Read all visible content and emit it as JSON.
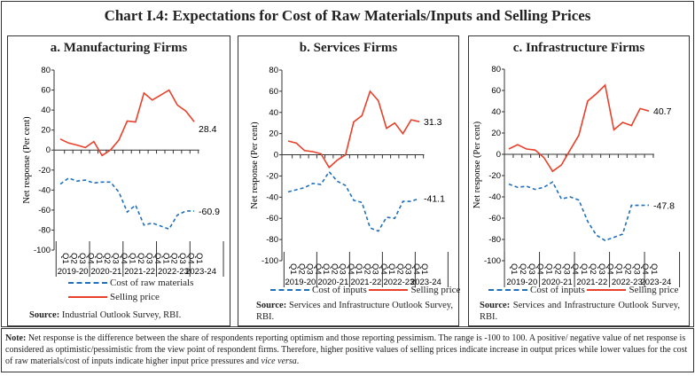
{
  "title": "Chart I.4: Expectations for Cost of Raw Materials/Inputs and Selling Prices",
  "colors": {
    "cost": "#1f6fbf",
    "selling": "#e8402a"
  },
  "chart_data": [
    {
      "type": "line",
      "title": "a. Manufacturing Firms",
      "ylabel": "Net response (Per cent)",
      "ylim": [
        -100,
        80
      ],
      "yticks": [
        "80",
        "60",
        "40",
        "20",
        "0",
        "-20",
        "-40",
        "-60",
        "-80",
        "-100"
      ],
      "quarters": [
        "Q1",
        "Q2",
        "Q3",
        "Q4",
        "Q1",
        "Q2",
        "Q3",
        "Q4",
        "Q1",
        "Q2",
        "Q3",
        "Q4",
        "Q1",
        "Q2",
        "Q3",
        "Q4",
        "Q1"
      ],
      "years": [
        "2019-20",
        "2020-21",
        "2021-22",
        "2022-23",
        "2023-24"
      ],
      "series": [
        {
          "name": "Cost of raw materials",
          "style": "dashed",
          "values": [
            -34,
            -28,
            -31,
            -30,
            -33,
            -32,
            -32,
            -42,
            -62,
            -55,
            -75,
            -73,
            -76,
            -79,
            -65,
            -61,
            -60.9
          ],
          "end_label": "-60.9"
        },
        {
          "name": "Selling price",
          "style": "solid",
          "values": [
            11,
            7,
            5,
            2.5,
            8.5,
            -5.5,
            0,
            10,
            29,
            28,
            57,
            50,
            55,
            60,
            45,
            39,
            28.4
          ],
          "end_label": "28.4"
        }
      ],
      "source_label": "Source:",
      "source": "Industrial Outlook Survey, RBI."
    },
    {
      "type": "line",
      "title": "b. Services Firms",
      "ylabel": "Net response (Per cent)",
      "ylim": [
        -100,
        80
      ],
      "yticks": [
        "80",
        "60",
        "40",
        "20",
        "0",
        "-20",
        "-40",
        "-60",
        "-80",
        "-100"
      ],
      "quarters": [
        "Q1",
        "Q2",
        "Q3",
        "Q4",
        "Q1",
        "Q2",
        "Q3",
        "Q4",
        "Q1",
        "Q2",
        "Q3",
        "Q4",
        "Q1",
        "Q2",
        "Q3",
        "Q4",
        "Q1"
      ],
      "years": [
        "2019-20",
        "2020-21",
        "2021-22",
        "2022-23",
        "2023-24"
      ],
      "series": [
        {
          "name": "Cost of inputs",
          "style": "dashed",
          "values": [
            -35,
            -33,
            -31,
            -27,
            -28,
            -16,
            -25,
            -29,
            -43,
            -45,
            -69,
            -72,
            -59,
            -60,
            -44,
            -44,
            -41.1
          ],
          "end_label": "-41.1"
        },
        {
          "name": "Selling price",
          "style": "solid",
          "values": [
            13,
            11,
            4,
            3,
            1,
            -12,
            -5,
            0,
            31,
            37,
            60,
            51,
            25,
            30,
            20,
            33,
            31.3
          ],
          "end_label": "31.3"
        }
      ],
      "source_label": "Source:",
      "source": "Services and Infrastructure Outlook Survey, RBI."
    },
    {
      "type": "line",
      "title": "c. Infrastructure Firms",
      "ylabel": "Net response (Per cent)",
      "ylim": [
        -100,
        80
      ],
      "yticks": [
        "80",
        "60",
        "40",
        "20",
        "0",
        "-20",
        "-40",
        "-60",
        "-80",
        "-100"
      ],
      "quarters": [
        "Q1",
        "Q2",
        "Q3",
        "Q4",
        "Q1",
        "Q2",
        "Q3",
        "Q4",
        "Q1",
        "Q2",
        "Q3",
        "Q4",
        "Q1",
        "Q2",
        "Q3",
        "Q4",
        "Q1"
      ],
      "years": [
        "2019-20",
        "2020-21",
        "2021-22",
        "2022-23",
        "2023-24"
      ],
      "series": [
        {
          "name": "Cost of inputs",
          "style": "dashed",
          "values": [
            -28,
            -31,
            -30,
            -33,
            -31,
            -26,
            -42,
            -40,
            -43,
            -63,
            -76,
            -81,
            -78,
            -75,
            -48,
            -48,
            -47.8
          ],
          "end_label": "-47.8"
        },
        {
          "name": "Selling price",
          "style": "solid",
          "values": [
            5,
            9,
            5,
            4,
            -3,
            -16,
            -10,
            4,
            18,
            50,
            57,
            65,
            23,
            30,
            27,
            43,
            40.7
          ],
          "end_label": "40.7"
        }
      ],
      "source_label": "Source:",
      "source": "Services and Infrastructure Outlook Survey, RBI."
    }
  ],
  "note": {
    "label": "Note:",
    "text1": "Net response is the difference between the share of respondents reporting optimism and those reporting pessimism. The range is -100 to 100. A positive/ negative value of net response is considered as optimistic/pessimistic from the view point of respondent firms. Therefore, higher positive values of selling prices indicate increase in output prices while lower values for the cost of raw materials/cost of inputs indicate higher input price pressures and ",
    "italic": "vice versa",
    "text2": "."
  }
}
